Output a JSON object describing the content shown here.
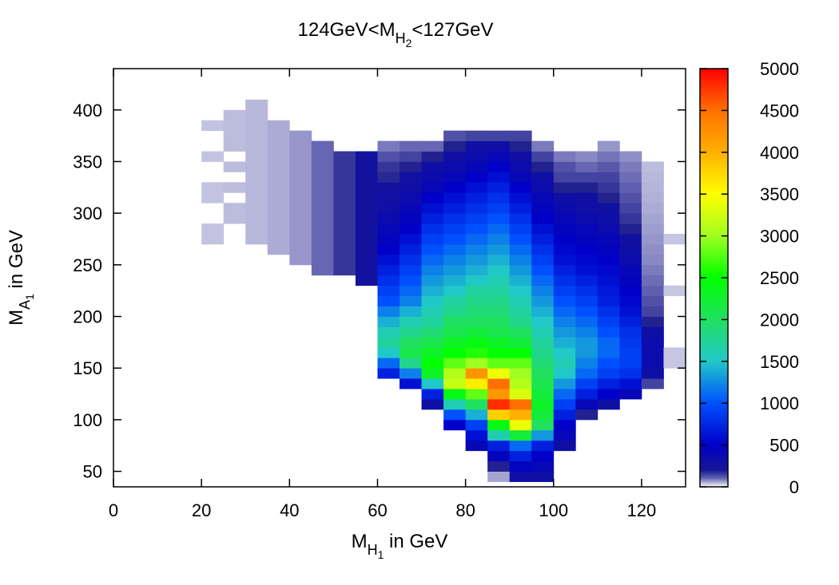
{
  "chart_data": {
    "type": "heatmap",
    "title": {
      "prefix": "124GeV<M",
      "sub": "H",
      "subsub": "2",
      "suffix": "<127GeV"
    },
    "xlabel": {
      "main": "M",
      "sub": "H",
      "subsub": "1",
      "suffix": " in GeV"
    },
    "ylabel": {
      "main": "M",
      "sub": "A",
      "subsub": "1",
      "suffix": " in GeV"
    },
    "xlim": [
      0,
      130
    ],
    "ylim": [
      35,
      440
    ],
    "xticks": [
      "0",
      "20",
      "40",
      "60",
      "80",
      "100",
      "120"
    ],
    "yticks": [
      "50",
      "100",
      "150",
      "200",
      "250",
      "300",
      "350",
      "400"
    ],
    "colorbar": {
      "range": [
        0,
        5000
      ],
      "ticks": [
        "0",
        "500",
        "1000",
        "1500",
        "2000",
        "2500",
        "3000",
        "3500",
        "4000",
        "4500",
        "5000"
      ],
      "stops": [
        {
          "v": 0,
          "color": "#ffffff"
        },
        {
          "v": 150,
          "color": "#1a1a8c"
        },
        {
          "v": 500,
          "color": "#0000c8"
        },
        {
          "v": 1000,
          "color": "#0050ff"
        },
        {
          "v": 1500,
          "color": "#20c8c8"
        },
        {
          "v": 2000,
          "color": "#20e060"
        },
        {
          "v": 2500,
          "color": "#00ff00"
        },
        {
          "v": 3000,
          "color": "#a0ff20"
        },
        {
          "v": 3500,
          "color": "#ffff00"
        },
        {
          "v": 4000,
          "color": "#ffb000"
        },
        {
          "v": 4500,
          "color": "#ff7000"
        },
        {
          "v": 5000,
          "color": "#ff0000"
        }
      ]
    },
    "grid": false,
    "bin_size": {
      "x": 5,
      "y": 10
    },
    "bins": [
      {
        "x0": 20,
        "x1": 25,
        "ys": [
          270,
          280,
          310,
          320,
          350,
          380
        ],
        "v": 15
      },
      {
        "x0": 25,
        "x1": 30,
        "ys": [
          290,
          300,
          320,
          340,
          360,
          370,
          380,
          390
        ],
        "v": 25
      },
      {
        "x0": 30,
        "x1": 35,
        "ys": [
          270,
          280,
          290,
          300,
          310,
          320,
          330,
          340,
          350,
          360,
          370,
          380,
          390,
          400
        ],
        "v": 30
      },
      {
        "x0": 35,
        "x1": 40,
        "ys": [
          260,
          270,
          280,
          290,
          300,
          310,
          320,
          330,
          340,
          350,
          360,
          370,
          380
        ],
        "v": 50
      },
      {
        "x0": 40,
        "x1": 45,
        "ys": [
          250,
          260,
          270,
          280,
          290,
          300,
          310,
          320,
          330,
          340,
          350,
          360,
          370
        ],
        "v": 80
      },
      {
        "x0": 45,
        "x1": 50,
        "ys": [
          240,
          250,
          260,
          270,
          280,
          290,
          300,
          310,
          320,
          330,
          340,
          350,
          360
        ],
        "v": 150
      },
      {
        "x0": 50,
        "x1": 55,
        "ys": [
          240,
          250,
          260,
          270,
          280,
          290,
          300,
          310,
          320,
          330,
          340,
          350
        ],
        "v": 220
      },
      {
        "x0": 55,
        "x1": 60,
        "ys": [
          230,
          240,
          250,
          260,
          270,
          280,
          290,
          300,
          310,
          320,
          330,
          340,
          350
        ],
        "v": 260
      },
      {
        "x0": 60,
        "x1": 65,
        "ys": [
          140,
          150,
          160,
          170,
          180,
          190,
          200,
          210,
          220,
          230,
          240,
          250,
          260,
          270,
          280,
          290,
          300,
          310,
          320,
          330,
          340,
          350,
          360
        ],
        "v": [
          700,
          1100,
          1500,
          1700,
          1600,
          1400,
          1200,
          1000,
          900,
          800,
          700,
          600,
          500,
          450,
          400,
          350,
          300,
          280,
          260,
          240,
          220,
          180,
          120
        ]
      },
      {
        "x0": 65,
        "x1": 70,
        "ys": [
          130,
          140,
          150,
          160,
          170,
          180,
          190,
          200,
          210,
          220,
          230,
          240,
          250,
          260,
          270,
          280,
          290,
          300,
          310,
          320,
          330,
          340,
          350,
          360
        ],
        "v": [
          600,
          1200,
          1800,
          2100,
          2000,
          1800,
          1600,
          1400,
          1200,
          1100,
          1000,
          900,
          800,
          700,
          600,
          500,
          450,
          400,
          350,
          300,
          280,
          250,
          200,
          150
        ]
      },
      {
        "x0": 70,
        "x1": 75,
        "ys": [
          110,
          120,
          130,
          140,
          150,
          160,
          170,
          180,
          190,
          200,
          210,
          220,
          230,
          240,
          250,
          260,
          270,
          280,
          290,
          300,
          310,
          320,
          330,
          340,
          350,
          360
        ],
        "v": [
          300,
          700,
          1500,
          2300,
          2500,
          2300,
          2100,
          1900,
          1700,
          1600,
          1500,
          1400,
          1300,
          1200,
          1100,
          1000,
          900,
          800,
          700,
          600,
          500,
          400,
          350,
          300,
          250,
          150
        ]
      },
      {
        "x0": 75,
        "x1": 80,
        "ys": [
          90,
          100,
          110,
          120,
          130,
          140,
          150,
          160,
          170,
          180,
          190,
          200,
          210,
          220,
          230,
          240,
          250,
          260,
          270,
          280,
          290,
          300,
          310,
          320,
          330,
          340,
          350,
          360,
          370
        ],
        "v": [
          500,
          1000,
          1600,
          2400,
          3200,
          3100,
          2800,
          2500,
          2300,
          2100,
          2000,
          1800,
          1700,
          1500,
          1400,
          1300,
          1200,
          1100,
          1000,
          900,
          800,
          700,
          600,
          500,
          400,
          350,
          300,
          250,
          180
        ]
      },
      {
        "x0": 80,
        "x1": 85,
        "ys": [
          70,
          80,
          90,
          100,
          110,
          120,
          130,
          140,
          150,
          160,
          170,
          180,
          190,
          200,
          210,
          220,
          230,
          240,
          250,
          260,
          270,
          280,
          290,
          300,
          310,
          320,
          330,
          340,
          350,
          360,
          370
        ],
        "v": [
          400,
          600,
          900,
          1400,
          2000,
          2800,
          3600,
          4200,
          3000,
          2600,
          2400,
          2200,
          2000,
          1900,
          1800,
          1700,
          1500,
          1400,
          1300,
          1200,
          1100,
          1000,
          900,
          800,
          700,
          600,
          500,
          400,
          350,
          300,
          200
        ]
      },
      {
        "x0": 85,
        "x1": 90,
        "ys": [
          40,
          50,
          60,
          70,
          80,
          90,
          100,
          110,
          120,
          130,
          140,
          150,
          160,
          170,
          180,
          190,
          200,
          210,
          220,
          230,
          240,
          250,
          260,
          270,
          280,
          290,
          300,
          310,
          320,
          330,
          340,
          350,
          360,
          370
        ],
        "v": [
          60,
          250,
          450,
          700,
          1600,
          2400,
          3800,
          4800,
          4200,
          4500,
          3400,
          2800,
          2500,
          2300,
          2100,
          2000,
          1900,
          1800,
          1700,
          1600,
          1500,
          1400,
          1300,
          1200,
          1100,
          1000,
          900,
          800,
          700,
          600,
          500,
          400,
          300,
          200
        ]
      },
      {
        "x0": 90,
        "x1": 95,
        "ys": [
          40,
          50,
          60,
          70,
          80,
          90,
          100,
          110,
          120,
          130,
          140,
          150,
          160,
          170,
          180,
          190,
          200,
          210,
          220,
          230,
          240,
          250,
          260,
          270,
          280,
          290,
          300,
          310,
          320,
          330,
          340,
          350,
          360,
          370
        ],
        "v": [
          300,
          450,
          700,
          1100,
          2200,
          3400,
          4000,
          4500,
          3300,
          3100,
          3000,
          2800,
          2500,
          2200,
          2000,
          1800,
          1700,
          1600,
          1500,
          1400,
          1300,
          1200,
          1100,
          1000,
          900,
          800,
          700,
          600,
          500,
          400,
          350,
          300,
          250,
          200
        ]
      },
      {
        "x0": 95,
        "x1": 100,
        "ys": [
          40,
          50,
          60,
          70,
          80,
          90,
          100,
          110,
          120,
          130,
          140,
          150,
          160,
          170,
          180,
          190,
          200,
          210,
          220,
          230,
          240,
          250,
          260,
          270,
          280,
          290,
          300,
          310,
          320,
          330,
          340,
          350,
          360
        ],
        "v": [
          300,
          400,
          500,
          700,
          1300,
          2000,
          2200,
          2300,
          2200,
          2100,
          2000,
          1900,
          1800,
          1700,
          1600,
          1500,
          1400,
          1300,
          1200,
          1100,
          1000,
          900,
          800,
          700,
          600,
          500,
          450,
          400,
          350,
          300,
          250,
          200,
          120
        ]
      },
      {
        "x0": 100,
        "x1": 105,
        "ys": [
          70,
          80,
          90,
          100,
          110,
          120,
          130,
          140,
          150,
          160,
          170,
          180,
          190,
          200,
          210,
          220,
          230,
          240,
          250,
          260,
          270,
          280,
          290,
          300,
          310,
          320,
          330,
          340,
          350
        ],
        "v": [
          300,
          400,
          500,
          700,
          900,
          1100,
          1300,
          1500,
          1600,
          1500,
          1400,
          1300,
          1200,
          1100,
          1000,
          900,
          800,
          700,
          600,
          550,
          500,
          450,
          400,
          350,
          300,
          250,
          200,
          180,
          120
        ]
      },
      {
        "x0": 105,
        "x1": 110,
        "ys": [
          100,
          110,
          120,
          130,
          140,
          150,
          160,
          170,
          180,
          190,
          200,
          210,
          220,
          230,
          240,
          250,
          260,
          270,
          280,
          290,
          300,
          310,
          320,
          330,
          340,
          350
        ],
        "v": [
          250,
          400,
          700,
          900,
          1100,
          1200,
          1300,
          1300,
          1200,
          1100,
          1000,
          900,
          800,
          700,
          600,
          550,
          500,
          450,
          400,
          350,
          300,
          280,
          250,
          200,
          150,
          100
        ]
      },
      {
        "x0": 110,
        "x1": 115,
        "ys": [
          110,
          120,
          130,
          140,
          150,
          160,
          170,
          180,
          190,
          200,
          210,
          220,
          230,
          240,
          250,
          260,
          270,
          280,
          290,
          300,
          310,
          320,
          330,
          340,
          350,
          360
        ],
        "v": [
          300,
          500,
          700,
          900,
          1000,
          1100,
          1100,
          1000,
          900,
          800,
          700,
          650,
          600,
          550,
          500,
          450,
          400,
          350,
          300,
          280,
          250,
          220,
          200,
          170,
          130,
          80
        ]
      },
      {
        "x0": 115,
        "x1": 120,
        "ys": [
          120,
          130,
          140,
          150,
          160,
          170,
          180,
          190,
          200,
          210,
          220,
          230,
          240,
          250,
          260,
          270,
          280,
          290,
          300,
          310,
          320,
          330,
          340,
          350
        ],
        "v": [
          400,
          600,
          800,
          900,
          900,
          850,
          800,
          700,
          600,
          550,
          500,
          450,
          400,
          350,
          300,
          280,
          250,
          220,
          200,
          180,
          160,
          140,
          120,
          90
        ]
      },
      {
        "x0": 120,
        "x1": 125,
        "ys": [
          130,
          140,
          150,
          160,
          170,
          180,
          190,
          200,
          210,
          220,
          230,
          240,
          250,
          260,
          270,
          280,
          290,
          300,
          310,
          320,
          330,
          340
        ],
        "v": [
          200,
          300,
          350,
          350,
          350,
          300,
          250,
          200,
          180,
          160,
          140,
          120,
          100,
          90,
          80,
          70,
          60,
          50,
          40,
          35,
          30,
          25
        ]
      },
      {
        "x0": 125,
        "x1": 130,
        "ys": [
          150,
          160,
          220,
          270
        ],
        "v": 10
      }
    ]
  }
}
